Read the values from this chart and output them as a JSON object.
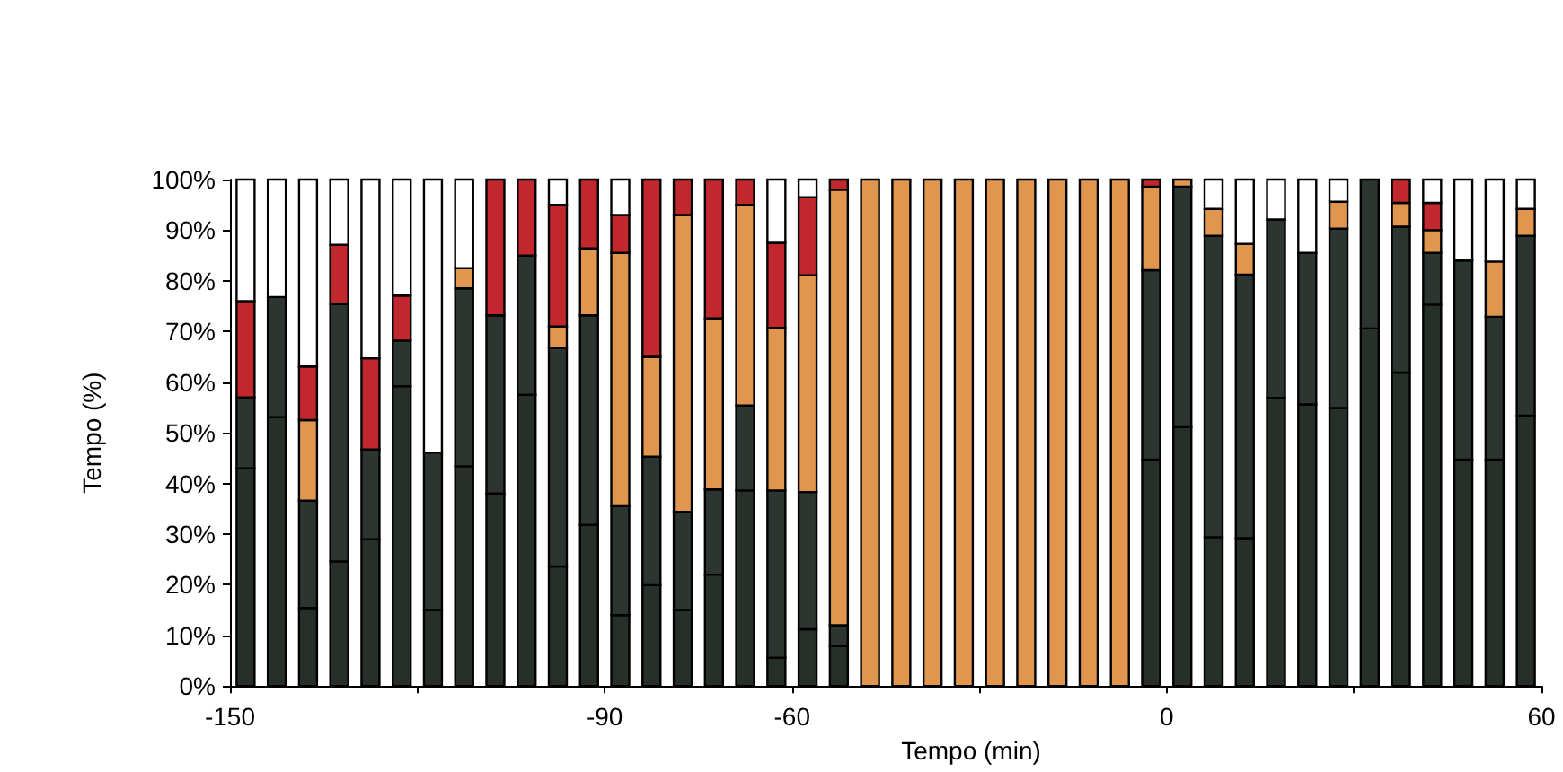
{
  "chart_data": {
    "type": "bar",
    "stacked": true,
    "xlabel": "Tempo (min)",
    "ylabel": "Tempo (%)",
    "x": [
      -147.5,
      -142.5,
      -137.5,
      -132.5,
      -127.5,
      -122.5,
      -117.5,
      -112.5,
      -107.5,
      -102.5,
      -97.5,
      -92.5,
      -87.5,
      -82.5,
      -77.5,
      -72.5,
      -67.5,
      -62.5,
      -57.5,
      -52.5,
      -47.5,
      -42.5,
      -37.5,
      -32.5,
      -27.5,
      -22.5,
      -17.5,
      -12.5,
      -7.5,
      -2.5,
      2.5,
      7.5,
      12.5,
      17.5,
      22.5,
      27.5,
      32.5,
      37.5,
      42.5,
      47.5,
      52.5,
      57.5
    ],
    "xlim": [
      -150,
      60
    ],
    "xticks": [
      -150,
      {
        "value": -120,
        "label": null
      },
      -90,
      -60,
      {
        "value": -30,
        "label": null
      },
      0,
      {
        "value": 30,
        "label": null
      },
      60
    ],
    "ylim": [
      0,
      100
    ],
    "yticks": [
      {
        "value": 0,
        "label": "0%"
      },
      {
        "value": 10,
        "label": "10%"
      },
      {
        "value": 20,
        "label": "20%"
      },
      {
        "value": 30,
        "label": "30%"
      },
      {
        "value": 40,
        "label": "40%"
      },
      {
        "value": 50,
        "label": "50%"
      },
      {
        "value": 60,
        "label": "60%"
      },
      {
        "value": 70,
        "label": "70%"
      },
      {
        "value": 80,
        "label": "80%"
      },
      {
        "value": 90,
        "label": "90%"
      },
      {
        "value": 100,
        "label": "100%"
      }
    ],
    "series": [
      {
        "color": "#263029",
        "values": [
          43,
          53.1,
          15.4,
          24.6,
          29.0,
          59.2,
          15.0,
          43.4,
          38.0,
          57.5,
          23.6,
          31.8,
          14.0,
          19.9,
          15.0,
          22.0,
          38.6,
          5.6,
          11.2,
          7.9,
          0,
          0,
          0,
          0,
          0,
          0,
          0,
          0,
          0,
          44.7,
          51.1,
          29.4,
          29.2,
          56.9,
          55.6,
          54.9,
          70.6,
          61.9,
          75.3,
          44.7,
          44.7,
          53.4
        ]
      },
      {
        "color": "#2d3531",
        "values": [
          14,
          23.7,
          21.2,
          50.8,
          17.7,
          9.0,
          31.1,
          35.1,
          35.2,
          27.5,
          43.2,
          41.4,
          21.5,
          25.4,
          19.4,
          16.8,
          16.8,
          33.0,
          27.1,
          4.1,
          0,
          0,
          0,
          0,
          0,
          0,
          0,
          0,
          0,
          37.4,
          47.5,
          59.5,
          52.0,
          35.2,
          29.9,
          35.4,
          29.4,
          28.8,
          10.2,
          39.3,
          28.2,
          35.5
        ]
      },
      {
        "color": "#e0964f",
        "values": [
          0,
          0,
          15.9,
          0,
          0,
          0,
          0,
          4.0,
          0,
          0,
          4.2,
          13.2,
          50.0,
          19.7,
          58.6,
          33.8,
          39.6,
          32.1,
          42.8,
          86.0,
          100,
          100,
          100,
          100,
          100,
          100,
          100,
          100,
          100,
          16.5,
          1.4,
          5.3,
          6.1,
          0,
          0,
          5.3,
          0,
          4.7,
          4.5,
          0,
          10.9,
          5.3
        ]
      },
      {
        "color": "#c0282e",
        "values": [
          19,
          0,
          10.6,
          11.7,
          18.0,
          8.9,
          0,
          0,
          26.8,
          15.0,
          24.0,
          13.6,
          7.5,
          35.0,
          7.0,
          27.4,
          5.0,
          16.8,
          15.4,
          2.0,
          0,
          0,
          0,
          0,
          0,
          0,
          0,
          0,
          0,
          1.4,
          0,
          0,
          0,
          0,
          0,
          0,
          0,
          4.6,
          5.4,
          0,
          0,
          0
        ]
      },
      {
        "color": "#ffffff",
        "values": [
          24,
          23.2,
          36.9,
          12.9,
          35.3,
          22.9,
          53.9,
          17.5,
          0,
          0,
          5.0,
          0,
          7.0,
          0,
          0,
          0,
          0,
          12.5,
          3.5,
          0,
          0,
          0,
          0,
          0,
          0,
          0,
          0,
          0,
          0,
          0,
          0,
          5.8,
          12.7,
          7.9,
          14.5,
          4.4,
          0,
          0,
          4.6,
          16.0,
          16.2,
          5.8
        ]
      }
    ]
  }
}
